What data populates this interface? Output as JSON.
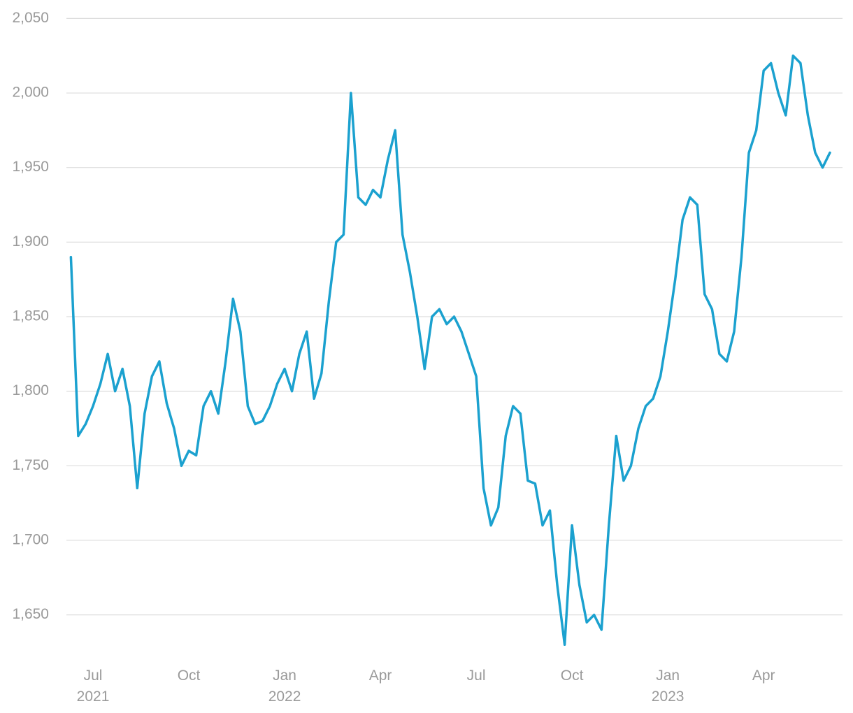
{
  "chart_data": {
    "type": "line",
    "categories": [
      null,
      null,
      null,
      "Jul\n2021",
      null,
      null,
      null,
      null,
      null,
      null,
      null,
      null,
      null,
      null,
      null,
      null,
      "Oct",
      null,
      null,
      null,
      null,
      null,
      null,
      null,
      null,
      null,
      null,
      null,
      null,
      "Jan\n2022",
      null,
      null,
      null,
      null,
      null,
      null,
      null,
      null,
      null,
      null,
      null,
      null,
      "Apr",
      null,
      null,
      null,
      null,
      null,
      null,
      null,
      null,
      null,
      null,
      null,
      null,
      "Jul",
      null,
      null,
      null,
      null,
      null,
      null,
      null,
      null,
      null,
      null,
      null,
      null,
      "Oct",
      null,
      null,
      null,
      null,
      null,
      null,
      null,
      null,
      null,
      null,
      null,
      null,
      "Jan\n2023",
      null,
      null,
      null,
      null,
      null,
      null,
      null,
      null,
      null,
      null,
      null,
      null,
      "Apr",
      null,
      null,
      null,
      null,
      null,
      null,
      null,
      null,
      null
    ],
    "values": [
      1890,
      1770,
      1778,
      1790,
      1805,
      1825,
      1800,
      1815,
      1790,
      1735,
      1785,
      1810,
      1820,
      1792,
      1775,
      1750,
      1760,
      1757,
      1790,
      1800,
      1785,
      1820,
      1862,
      1840,
      1790,
      1778,
      1780,
      1790,
      1805,
      1815,
      1800,
      1825,
      1840,
      1795,
      1812,
      1860,
      1900,
      1905,
      2000,
      1930,
      1925,
      1935,
      1930,
      1955,
      1975,
      1905,
      1880,
      1850,
      1815,
      1850,
      1855,
      1845,
      1850,
      1840,
      1825,
      1810,
      1735,
      1710,
      1722,
      1770,
      1790,
      1785,
      1740,
      1738,
      1710,
      1720,
      1670,
      1630,
      1710,
      1670,
      1645,
      1650,
      1640,
      1710,
      1770,
      1740,
      1750,
      1775,
      1790,
      1795,
      1810,
      1840,
      1875,
      1915,
      1930,
      1925,
      1865,
      1855,
      1825,
      1820,
      1840,
      1890,
      1960,
      1975,
      2015,
      2020,
      2000,
      1985,
      2025,
      2020,
      1985,
      1960,
      1950,
      1960
    ],
    "color": "#1ba1cf",
    "ylim": [
      1617,
      2053
    ],
    "yticks": [
      {
        "value": 1650,
        "label": "1,650"
      },
      {
        "value": 1700,
        "label": "1,700"
      },
      {
        "value": 1750,
        "label": "1,750"
      },
      {
        "value": 1800,
        "label": "1,800"
      },
      {
        "value": 1850,
        "label": "1,850"
      },
      {
        "value": 1900,
        "label": "1,900"
      },
      {
        "value": 1950,
        "label": "1,950"
      },
      {
        "value": 2000,
        "label": "2,000"
      },
      {
        "value": 2050,
        "label": "2,050"
      }
    ],
    "grid": true
  }
}
